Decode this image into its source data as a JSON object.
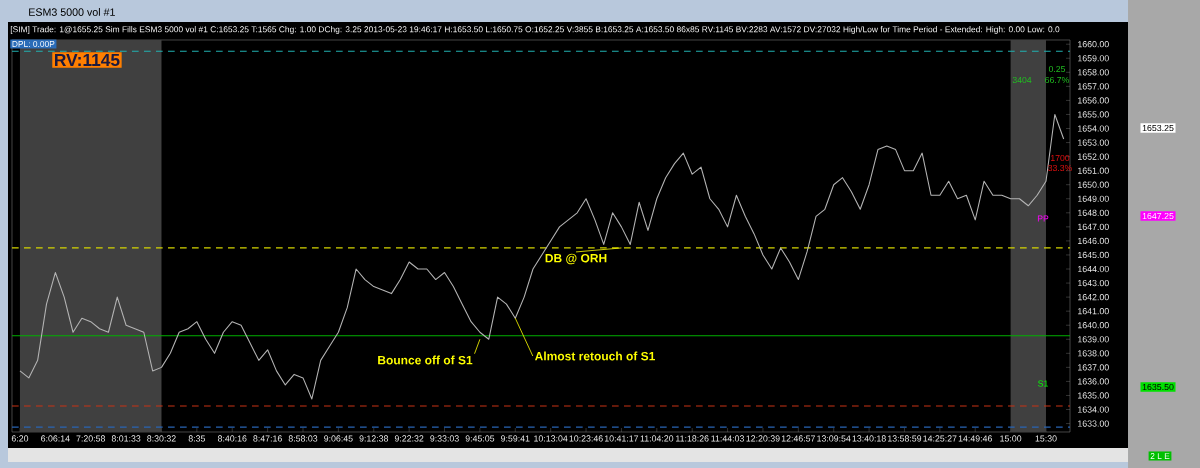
{
  "chart_data": {
    "type": "line",
    "title": "[SIM] Trade: 1@1655.25 Sim Fills ESM3 5000 vol #1 C:1653.25 T:1565 Chg: 1.00 DChg: 3.25 2013-05-23 19:46:17 H:1653.50 L:1650.75 O:1652.25 V:3855 B:1653.25 A:1653.50 86x85 RV:1145 BV:2283 AV:1572 DV:27032 High/Low for Time Period - Extended: High: 0.00 Low: 0.0",
    "subtitle": "ESM3 5000 vol #1",
    "categories": [
      "6:20",
      null,
      null,
      null,
      "6:06:14",
      null,
      null,
      null,
      "7:20:58",
      null,
      null,
      null,
      "8:01:33",
      null,
      null,
      null,
      "8:30:32",
      null,
      null,
      null,
      "8:35",
      null,
      null,
      null,
      "8:40:16",
      null,
      null,
      null,
      "8:47:16",
      null,
      null,
      null,
      "8:58:03",
      null,
      null,
      null,
      "9:06:45",
      null,
      null,
      null,
      "9:12:38",
      null,
      null,
      null,
      "9:22:32",
      null,
      null,
      null,
      "9:33:03",
      null,
      null,
      null,
      "9:45:05",
      null,
      null,
      null,
      "9:59:41",
      null,
      null,
      null,
      "10:13:04",
      null,
      null,
      null,
      "10:23:46",
      null,
      null,
      null,
      "10:41:17",
      null,
      null,
      null,
      "11:04:20",
      null,
      null,
      null,
      "11:18:26",
      null,
      null,
      null,
      "11:44:03",
      null,
      null,
      null,
      "12:20:39",
      null,
      null,
      null,
      "12:46:57",
      null,
      null,
      null,
      "13:09:54",
      null,
      null,
      null,
      "13:40:18",
      null,
      null,
      null,
      "13:58:59",
      null,
      null,
      null,
      "14:25:27",
      null,
      null,
      null,
      "14:49:46",
      null,
      null,
      null,
      "15:00",
      null,
      null,
      null,
      "15:30",
      null,
      null
    ],
    "values": [
      1636.75,
      1636.25,
      1637.5,
      1641.5,
      1643.75,
      1642.0,
      1639.5,
      1640.5,
      1640.25,
      1639.75,
      1639.5,
      1642.0,
      1640.0,
      1639.75,
      1639.5,
      1636.75,
      1637.0,
      1638.0,
      1639.5,
      1639.75,
      1640.25,
      1639.0,
      1638.0,
      1639.5,
      1640.25,
      1640.0,
      1638.75,
      1637.5,
      1638.25,
      1636.75,
      1635.75,
      1636.5,
      1636.25,
      1634.75,
      1637.5,
      1638.5,
      1639.5,
      1641.25,
      1644.0,
      1643.25,
      1642.75,
      1642.5,
      1642.25,
      1643.25,
      1644.5,
      1644.0,
      1644.0,
      1643.25,
      1643.75,
      1642.75,
      1641.5,
      1640.25,
      1639.5,
      1639.0,
      1642.0,
      1641.5,
      1640.5,
      1642.0,
      1644.0,
      1645.0,
      1646.0,
      1647.0,
      1647.5,
      1648.0,
      1649.0,
      1647.5,
      1645.75,
      1648.0,
      1647.0,
      1645.75,
      1648.75,
      1646.75,
      1649.0,
      1650.5,
      1651.5,
      1652.25,
      1650.75,
      1651.25,
      1649.0,
      1648.25,
      1647.0,
      1649.25,
      1647.75,
      1646.5,
      1645.0,
      1644.0,
      1645.5,
      1644.5,
      1643.25,
      1645.25,
      1647.75,
      1648.25,
      1650.0,
      1650.5,
      1649.5,
      1648.25,
      1650.0,
      1652.5,
      1652.75,
      1652.5,
      1651.0,
      1651.0,
      1652.25,
      1649.25,
      1649.25,
      1650.25,
      1649.0,
      1649.25,
      1647.5,
      1650.25,
      1649.25,
      1649.25,
      1649.0,
      1649.0,
      1648.5,
      1649.25,
      1650.25,
      1655.0,
      1653.25
    ],
    "color": "#b4b4b4",
    "ylim": [
      1632.4,
      1660.3
    ],
    "yticks": [
      {
        "value": 1633,
        "label": "1633.00"
      },
      {
        "value": 1634,
        "label": "1634.00"
      },
      {
        "value": 1635,
        "label": "1635.00"
      },
      {
        "value": 1636,
        "label": "1636.00"
      },
      {
        "value": 1637,
        "label": "1637.00"
      },
      {
        "value": 1638,
        "label": "1638.00"
      },
      {
        "value": 1639,
        "label": "1639.00"
      },
      {
        "value": 1640,
        "label": "1640.00"
      },
      {
        "value": 1641,
        "label": "1641.00"
      },
      {
        "value": 1642,
        "label": "1642.00"
      },
      {
        "value": 1643,
        "label": "1643.00"
      },
      {
        "value": 1644,
        "label": "1644.00"
      },
      {
        "value": 1645,
        "label": "1645.00"
      },
      {
        "value": 1646,
        "label": "1646.00"
      },
      {
        "value": 1647,
        "label": "1647.00"
      },
      {
        "value": 1648,
        "label": "1648.00"
      },
      {
        "value": 1649,
        "label": "1649.00"
      },
      {
        "value": 1650,
        "label": "1650.00"
      },
      {
        "value": 1651,
        "label": "1651.00"
      },
      {
        "value": 1652,
        "label": "1652.00"
      },
      {
        "value": 1653,
        "label": "1653.00"
      },
      {
        "value": 1654,
        "label": "1654.00"
      },
      {
        "value": 1655,
        "label": "1655.00"
      },
      {
        "value": 1656,
        "label": "1656.00"
      },
      {
        "value": 1657,
        "label": "1657.00"
      },
      {
        "value": 1658,
        "label": "1658.00"
      },
      {
        "value": 1659,
        "label": "1659.00"
      },
      {
        "value": 1660,
        "label": "1660.00"
      }
    ],
    "ref_lines": [
      {
        "axis": "y",
        "value": 1659.5,
        "color": "#20b0b0",
        "line_style": "dashed"
      },
      {
        "axis": "y",
        "value": 1645.5,
        "color": "#d4d400",
        "line_style": "dashed"
      },
      {
        "axis": "y",
        "value": 1639.25,
        "color": "#00b000",
        "line_style": "solid"
      },
      {
        "axis": "y",
        "value": 1634.25,
        "color": "#c83214",
        "line_style": "dashed"
      },
      {
        "axis": "y",
        "value": 1632.75,
        "color": "#2864b4",
        "line_style": "dashed"
      }
    ],
    "bands": [
      {
        "axis": "x",
        "from": "6:20",
        "to": "8:30:32",
        "color": "#404040"
      },
      {
        "axis": "x",
        "from": "15:00",
        "to": "15:30",
        "color": "#404040"
      }
    ],
    "annotations": [
      "DPL: 0.00P",
      "RV:1145",
      {
        "text": "Bounce off of S1",
        "x": "9:45:05",
        "y": 1639.0
      },
      {
        "text": "Almost retouch of S1",
        "x": "9:59:41",
        "y": 1640.5
      },
      {
        "text": "DB @ ORH",
        "x": "10:41:17",
        "y": 1645.5
      },
      "0.25",
      "3404",
      "66.7%",
      "1700",
      "33.3%",
      {
        "text": "PP",
        "y": 1647.25
      },
      {
        "text": "S1",
        "y": 1635.5
      },
      "1653.25",
      "1647.25",
      "1635.50",
      "2 L E"
    ]
  }
}
